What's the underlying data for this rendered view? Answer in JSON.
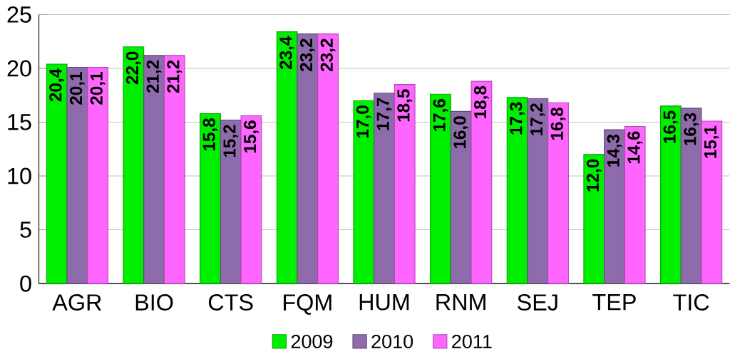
{
  "chart_data": {
    "type": "bar",
    "categories": [
      "AGR",
      "BIO",
      "CTS",
      "FQM",
      "HUM",
      "RNM",
      "SEJ",
      "TEP",
      "TIC"
    ],
    "series": [
      {
        "name": "2009",
        "color": "#00ee00",
        "values": [
          20.4,
          22.0,
          15.8,
          23.4,
          17.0,
          17.6,
          17.3,
          12.0,
          16.5
        ],
        "value_labels": [
          "20,4",
          "22,0",
          "15,8",
          "23,4",
          "17,0",
          "17,6",
          "17,3",
          "12,0",
          "16,5"
        ]
      },
      {
        "name": "2010",
        "color": "#8e6bab",
        "values": [
          20.1,
          21.2,
          15.2,
          23.2,
          17.7,
          16.0,
          17.2,
          14.3,
          16.3
        ],
        "value_labels": [
          "20,1",
          "21,2",
          "15,2",
          "23,2",
          "17,7",
          "16,0",
          "17,2",
          "14,3",
          "16,3"
        ]
      },
      {
        "name": "2011",
        "color": "#ff66ff",
        "values": [
          20.1,
          21.2,
          15.6,
          23.2,
          18.5,
          18.8,
          16.8,
          14.6,
          15.1
        ],
        "value_labels": [
          "20,1",
          "21,2",
          "15,6",
          "23,2",
          "18,5",
          "18,8",
          "16,8",
          "14,6",
          "15,1"
        ]
      }
    ],
    "ylim": [
      0,
      25
    ],
    "yticks": [
      0,
      5,
      10,
      15,
      20,
      25
    ],
    "grid": "y",
    "legend": "bottom"
  }
}
